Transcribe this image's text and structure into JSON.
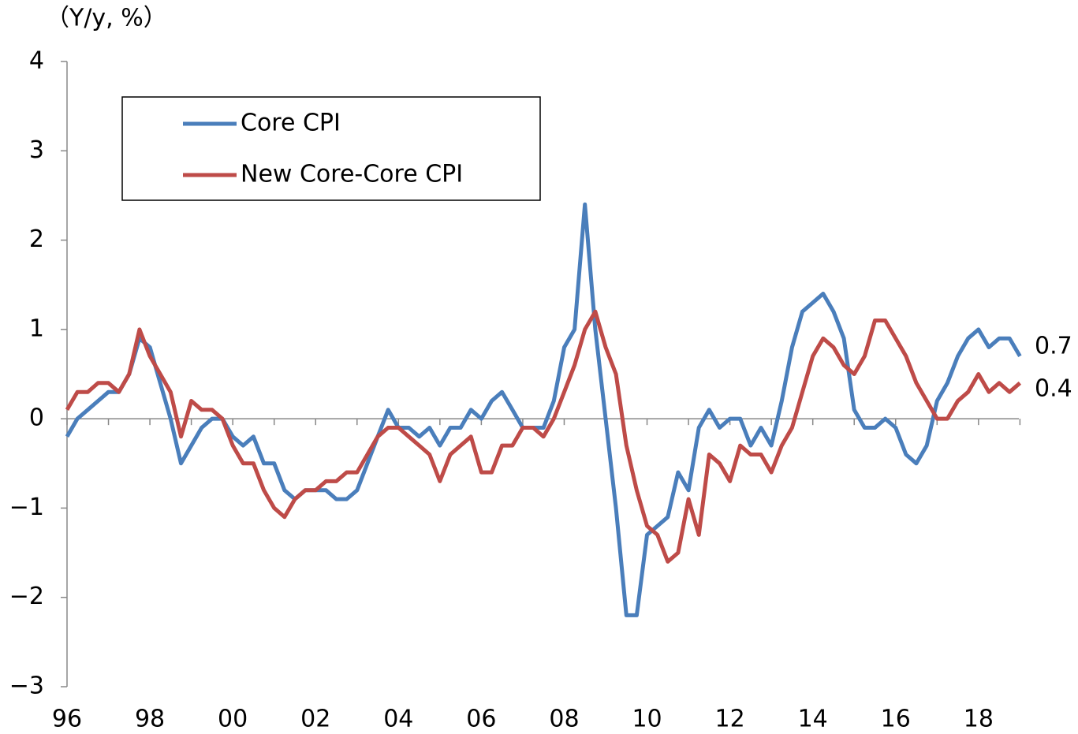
{
  "chart_data": {
    "type": "line",
    "y_label": "（Y/y, %）",
    "x": [
      1996,
      1996.25,
      1996.5,
      1996.75,
      1997,
      1997.25,
      1997.5,
      1997.75,
      1998,
      1998.25,
      1998.5,
      1998.75,
      1999,
      1999.25,
      1999.5,
      1999.75,
      2000,
      2000.25,
      2000.5,
      2000.75,
      2001,
      2001.25,
      2001.5,
      2001.75,
      2002,
      2002.25,
      2002.5,
      2002.75,
      2003,
      2003.25,
      2003.5,
      2003.75,
      2004,
      2004.25,
      2004.5,
      2004.75,
      2005,
      2005.25,
      2005.5,
      2005.75,
      2006,
      2006.25,
      2006.5,
      2006.75,
      2007,
      2007.25,
      2007.5,
      2007.75,
      2008,
      2008.25,
      2008.5,
      2008.75,
      2009,
      2009.25,
      2009.5,
      2009.75,
      2010,
      2010.25,
      2010.5,
      2010.75,
      2011,
      2011.25,
      2011.5,
      2011.75,
      2012,
      2012.25,
      2012.5,
      2012.75,
      2013,
      2013.25,
      2013.5,
      2013.75,
      2014,
      2014.25,
      2014.5,
      2014.75,
      2015,
      2015.25,
      2015.5,
      2015.75,
      2016,
      2016.25,
      2016.5,
      2016.75,
      2017,
      2017.25,
      2017.5,
      2017.75,
      2018,
      2018.25,
      2018.5,
      2018.75,
      2019
    ],
    "series": [
      {
        "name": "Core CPI",
        "color": "#4a7ebb",
        "values": [
          -0.2,
          0.0,
          0.1,
          0.2,
          0.3,
          0.3,
          0.5,
          0.9,
          0.8,
          0.4,
          0.0,
          -0.5,
          -0.3,
          -0.1,
          0.0,
          0.0,
          -0.2,
          -0.3,
          -0.2,
          -0.5,
          -0.5,
          -0.8,
          -0.9,
          -0.8,
          -0.8,
          -0.8,
          -0.9,
          -0.9,
          -0.8,
          -0.5,
          -0.2,
          0.1,
          -0.1,
          -0.1,
          -0.2,
          -0.1,
          -0.3,
          -0.1,
          -0.1,
          0.1,
          0.0,
          0.2,
          0.3,
          0.1,
          -0.1,
          -0.1,
          -0.1,
          0.2,
          0.8,
          1.0,
          2.4,
          1.0,
          0.0,
          -1.0,
          -2.2,
          -2.2,
          -1.3,
          -1.2,
          -1.1,
          -0.6,
          -0.8,
          -0.1,
          0.1,
          -0.1,
          0.0,
          0.0,
          -0.3,
          -0.1,
          -0.3,
          0.2,
          0.8,
          1.2,
          1.3,
          1.4,
          1.2,
          0.9,
          0.1,
          -0.1,
          -0.1,
          0.0,
          -0.1,
          -0.4,
          -0.5,
          -0.3,
          0.2,
          0.4,
          0.7,
          0.9,
          1.0,
          0.8,
          0.9,
          0.9,
          0.7
        ]
      },
      {
        "name": "New Core-Core CPI",
        "color": "#be4b48",
        "values": [
          0.1,
          0.3,
          0.3,
          0.4,
          0.4,
          0.3,
          0.5,
          1.0,
          0.7,
          0.5,
          0.3,
          -0.2,
          0.2,
          0.1,
          0.1,
          0.0,
          -0.3,
          -0.5,
          -0.5,
          -0.8,
          -1.0,
          -1.1,
          -0.9,
          -0.8,
          -0.8,
          -0.7,
          -0.7,
          -0.6,
          -0.6,
          -0.4,
          -0.2,
          -0.1,
          -0.1,
          -0.2,
          -0.3,
          -0.4,
          -0.7,
          -0.4,
          -0.3,
          -0.2,
          -0.6,
          -0.6,
          -0.3,
          -0.3,
          -0.1,
          -0.1,
          -0.2,
          0.0,
          0.3,
          0.6,
          1.0,
          1.2,
          0.8,
          0.5,
          -0.3,
          -0.8,
          -1.2,
          -1.3,
          -1.6,
          -1.5,
          -0.9,
          -1.3,
          -0.4,
          -0.5,
          -0.7,
          -0.3,
          -0.4,
          -0.4,
          -0.6,
          -0.3,
          -0.1,
          0.3,
          0.7,
          0.9,
          0.8,
          0.6,
          0.5,
          0.7,
          1.1,
          1.1,
          0.9,
          0.7,
          0.4,
          0.2,
          0.0,
          0.0,
          0.2,
          0.3,
          0.5,
          0.3,
          0.4,
          0.3,
          0.4
        ]
      }
    ],
    "xlim": [
      1996,
      2019.05
    ],
    "xticks": [
      {
        "value": 1996,
        "label": "96"
      },
      {
        "value": 1998,
        "label": "98"
      },
      {
        "value": 2000,
        "label": "00"
      },
      {
        "value": 2002,
        "label": "02"
      },
      {
        "value": 2004,
        "label": "04"
      },
      {
        "value": 2006,
        "label": "06"
      },
      {
        "value": 2008,
        "label": "08"
      },
      {
        "value": 2010,
        "label": "10"
      },
      {
        "value": 2012,
        "label": "12"
      },
      {
        "value": 2014,
        "label": "14"
      },
      {
        "value": 2016,
        "label": "16"
      },
      {
        "value": 2018,
        "label": "18"
      }
    ],
    "xminorticks": [
      1997,
      1999,
      2001,
      2003,
      2005,
      2007,
      2009,
      2011,
      2013,
      2015,
      2017,
      2019
    ],
    "ylim": [
      -3,
      4
    ],
    "yticks": [
      {
        "value": -3,
        "label": "−3"
      },
      {
        "value": -2,
        "label": "−2"
      },
      {
        "value": -1,
        "label": "−1"
      },
      0,
      1,
      2,
      3,
      4
    ],
    "legend": "upper left"
  }
}
